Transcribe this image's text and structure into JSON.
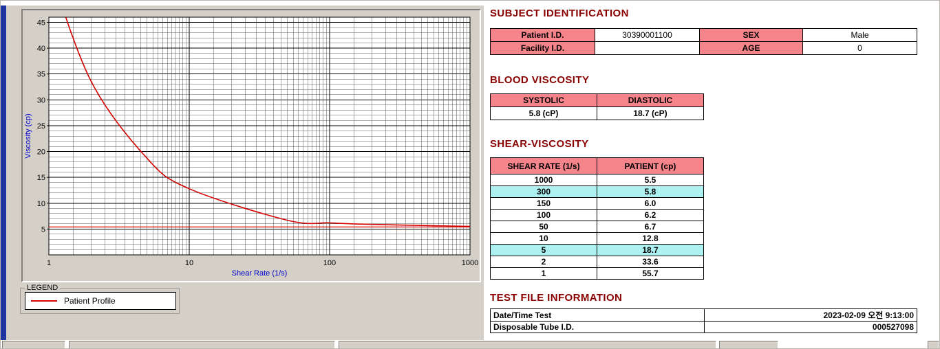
{
  "titles": {
    "subject": "SUBJECT IDENTIFICATION",
    "blood": "BLOOD VISCOSITY",
    "shear": "SHEAR-VISCOSITY",
    "testfile": "TEST FILE INFORMATION"
  },
  "subject_table": {
    "rows": [
      {
        "label1": "Patient I.D.",
        "value1": "30390001100",
        "label2": "SEX",
        "value2": "Male"
      },
      {
        "label1": "Facility I.D.",
        "value1": "",
        "label2": "AGE",
        "value2": "0"
      }
    ]
  },
  "blood_table": {
    "headers": [
      "SYSTOLIC",
      "DIASTOLIC"
    ],
    "values": [
      "5.8 (cP)",
      "18.7 (cP)"
    ]
  },
  "shear_table": {
    "headers": [
      "SHEAR RATE (1/s)",
      "PATIENT (cp)"
    ],
    "rows": [
      {
        "rate": "1000",
        "value": "5.5",
        "highlight": false
      },
      {
        "rate": "300",
        "value": "5.8",
        "highlight": true
      },
      {
        "rate": "150",
        "value": "6.0",
        "highlight": false
      },
      {
        "rate": "100",
        "value": "6.2",
        "highlight": false
      },
      {
        "rate": "50",
        "value": "6.7",
        "highlight": false
      },
      {
        "rate": "10",
        "value": "12.8",
        "highlight": false
      },
      {
        "rate": "5",
        "value": "18.7",
        "highlight": true
      },
      {
        "rate": "2",
        "value": "33.6",
        "highlight": false
      },
      {
        "rate": "1",
        "value": "55.7",
        "highlight": false
      }
    ]
  },
  "testfile_table": {
    "rows": [
      {
        "label": "Date/Time Test",
        "value": "2023-02-09  오전 9:13:00"
      },
      {
        "label": "Disposable Tube I.D.",
        "value": "000527098"
      }
    ]
  },
  "legend": {
    "title": "LEGEND",
    "items": [
      {
        "label": "Patient Profile",
        "color": "#d40000"
      }
    ]
  },
  "chart_data": {
    "type": "line",
    "title": "",
    "xlabel": "Shear Rate (1/s)",
    "ylabel": "Viscosity (cp)",
    "x_scale": "log",
    "x": [
      1,
      2,
      5,
      10,
      50,
      100,
      150,
      300,
      1000
    ],
    "series": [
      {
        "name": "Patient Profile",
        "color": "#d40000",
        "values": [
          55.7,
          33.6,
          18.7,
          12.8,
          6.7,
          6.2,
          6.0,
          5.8,
          5.5
        ]
      }
    ],
    "reference_line_y": 5.4,
    "xlim": [
      1,
      1000
    ],
    "ylim": [
      0,
      46
    ],
    "y_ticks": [
      5,
      10,
      15,
      20,
      25,
      30,
      35,
      40,
      45
    ],
    "x_ticks": [
      1,
      10,
      100,
      1000
    ],
    "grid": "dense",
    "legend_position": "below-left"
  },
  "colors": {
    "heading": "#8b0000",
    "pink": "#f5848b",
    "cyan": "#aef1f1",
    "red": "#d40000",
    "axis_blue": "#0000cc",
    "accent_blue": "#1e36a4",
    "panel_gray": "#d4d0c8"
  }
}
